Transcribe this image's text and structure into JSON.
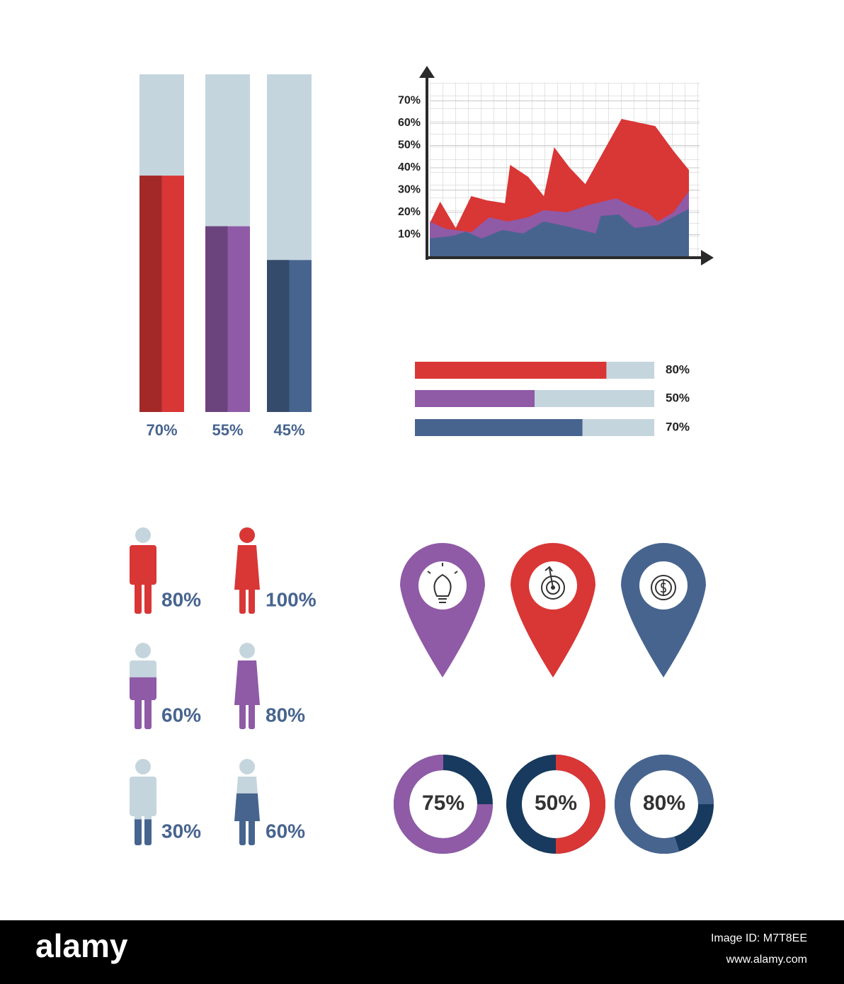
{
  "chart_data": [
    {
      "type": "bar",
      "values": [
        70,
        55,
        45
      ],
      "value_labels": [
        "70%",
        "55%",
        "45%"
      ],
      "colors": [
        "#d93636",
        "#8f5aa6",
        "#47648f"
      ],
      "track_color": "#c5d5de",
      "ylim": [
        0,
        100
      ]
    },
    {
      "type": "area",
      "ylim": [
        0,
        80
      ],
      "xlim": [
        0,
        100
      ],
      "yticks": [
        {
          "value": 10,
          "label": "10%"
        },
        {
          "value": 20,
          "label": "20%"
        },
        {
          "value": 30,
          "label": "30%"
        },
        {
          "value": 40,
          "label": "40%"
        },
        {
          "value": 50,
          "label": "50%"
        },
        {
          "value": 60,
          "label": "60%"
        },
        {
          "value": 70,
          "label": "70%"
        }
      ],
      "grid": true,
      "series": [
        {
          "color": "#d93636",
          "x": [
            0,
            4,
            10,
            16,
            22,
            29,
            31,
            38,
            44,
            48,
            54,
            60,
            74,
            87,
            94,
            100
          ],
          "values": [
            15.2,
            24.8,
            13,
            27.3,
            25.4,
            24.1,
            41.3,
            35.9,
            27.3,
            49.2,
            40,
            32.7,
            61.9,
            58.7,
            47.6,
            39
          ]
        },
        {
          "color": "#8f5aa6",
          "x": [
            0,
            6,
            16,
            23,
            30,
            38,
            44,
            53,
            61,
            72,
            77,
            84,
            88,
            94,
            100
          ],
          "values": [
            15.9,
            12.7,
            11.1,
            17.8,
            15.9,
            17.8,
            21,
            20,
            23.2,
            26.3,
            23.2,
            20,
            15.9,
            20,
            29.5
          ]
        },
        {
          "color": "#47648f",
          "x": [
            0,
            9,
            14,
            20,
            28,
            36,
            44,
            53,
            64,
            66,
            73,
            79,
            88,
            100
          ],
          "values": [
            8.3,
            9.5,
            11.4,
            8.3,
            12.1,
            10.5,
            15.9,
            13.7,
            10.5,
            18.4,
            19,
            13,
            14.3,
            21.6
          ]
        }
      ]
    },
    {
      "type": "progress_bar",
      "values": [
        80,
        50,
        70
      ],
      "value_labels": [
        "80%",
        "50%",
        "70%"
      ],
      "colors": [
        "#d93636",
        "#8f5aa6",
        "#47648f"
      ],
      "track_color": "#c5d5de",
      "xlim": [
        0,
        100
      ]
    },
    {
      "type": "pictogram",
      "values": [
        80,
        100,
        60,
        80,
        30,
        60
      ],
      "value_labels": [
        "80%",
        "100%",
        "60%",
        "80%",
        "30%",
        "60%"
      ],
      "shapes": [
        "male",
        "female",
        "male",
        "female",
        "male",
        "female"
      ],
      "colors": [
        "#d93636",
        "#d93636",
        "#8f5aa6",
        "#8f5aa6",
        "#47648f",
        "#47648f"
      ],
      "track_color": "#c5d5de",
      "ylim": [
        0,
        100
      ]
    },
    {
      "type": "donut",
      "values": [
        75,
        50,
        80
      ],
      "value_labels": [
        "75%",
        "50%",
        "80%"
      ],
      "colors": [
        "#8f5aa6",
        "#d93636",
        "#47648f"
      ],
      "remainder_color": "#173a5e"
    }
  ],
  "footer": {
    "brand": "alamy",
    "image_id": "Image ID: M7T8EE",
    "url": "www.alamy.com"
  }
}
